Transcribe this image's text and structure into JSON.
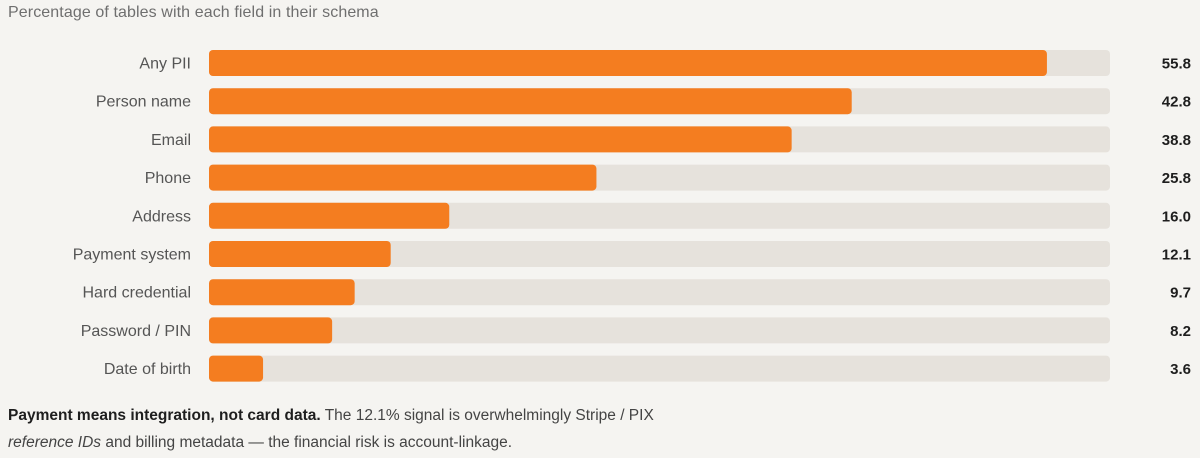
{
  "chart_data": {
    "type": "bar",
    "orientation": "horizontal",
    "title": "Percentage of tables with each field in their schema",
    "categories": [
      "Any PII",
      "Person name",
      "Email",
      "Phone",
      "Address",
      "Payment system",
      "Hard credential",
      "Password / PIN",
      "Date of birth"
    ],
    "values": [
      55.8,
      42.8,
      38.8,
      25.8,
      16.0,
      12.1,
      9.7,
      8.2,
      3.6
    ],
    "value_labels": [
      "55.8",
      "42.8",
      "38.8",
      "25.8",
      "16.0",
      "12.1",
      "9.7",
      "8.2",
      "3.6"
    ],
    "xlim": [
      0,
      60
    ],
    "grid": false,
    "bar_color": "#f47d20",
    "track_color": "#e6e2dc"
  },
  "note": {
    "bold": "Payment means integration, not card data.",
    "line1": " The 12.1% signal is overwhelmingly Stripe / PIX",
    "italic": "reference IDs",
    "line2": " and billing metadata — the financial risk is account-linkage."
  }
}
